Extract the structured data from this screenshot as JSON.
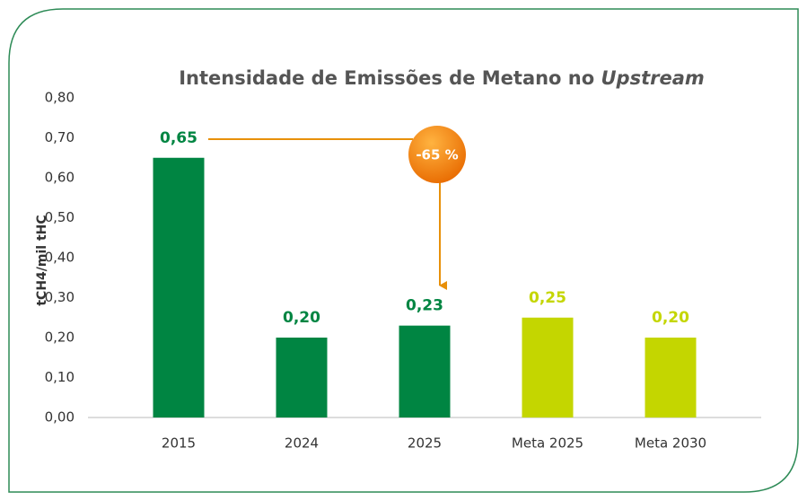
{
  "chart_data": {
    "type": "bar",
    "title": "Intensidade de Emissões de Metano no",
    "title_emphasis": "Upstream",
    "y_label": "tCH4/mil tHC",
    "categories": [
      "2015",
      "2024",
      "2025",
      "Meta 2025",
      "Meta 2030"
    ],
    "values": [
      0.65,
      0.2,
      0.23,
      0.25,
      0.2
    ],
    "value_labels": [
      "0,65",
      "0,20",
      "0,23",
      "0,25",
      "0,20"
    ],
    "colors": [
      "#008542",
      "#008542",
      "#008542",
      "#c4d600",
      "#c4d600"
    ],
    "ylim": [
      0,
      0.8
    ],
    "yticks": [
      {
        "value": 0,
        "label": "0,00"
      },
      {
        "value": 0.1,
        "label": "0,10"
      },
      {
        "value": 0.2,
        "label": "0,20"
      },
      {
        "value": 0.3,
        "label": "0,30"
      },
      {
        "value": 0.4,
        "label": "0,40"
      },
      {
        "value": 0.5,
        "label": "0,50"
      },
      {
        "value": 0.6,
        "label": "0,60"
      },
      {
        "value": 0.7,
        "label": "0,70"
      },
      {
        "value": 0.8,
        "label": "0,80"
      }
    ],
    "annotation": "-65 %"
  }
}
